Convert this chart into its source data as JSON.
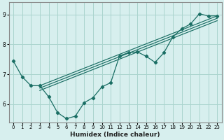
{
  "xlabel": "Humidex (Indice chaleur)",
  "xlim": [
    -0.5,
    23.5
  ],
  "ylim": [
    5.4,
    9.4
  ],
  "yticks": [
    6,
    7,
    8,
    9
  ],
  "xticks": [
    0,
    1,
    2,
    3,
    4,
    5,
    6,
    7,
    8,
    9,
    10,
    11,
    12,
    13,
    14,
    15,
    16,
    17,
    18,
    19,
    20,
    21,
    22,
    23
  ],
  "bg_color": "#d7efee",
  "line_color": "#1a6e64",
  "grid_color": "#aad4ce",
  "curve_x": [
    0,
    1,
    2,
    3,
    4,
    5,
    6,
    7,
    8,
    9,
    10,
    11,
    12,
    13,
    14,
    15,
    16,
    17,
    18,
    19,
    20,
    21,
    22,
    23
  ],
  "curve_y": [
    7.45,
    6.92,
    6.62,
    6.62,
    6.25,
    5.72,
    5.52,
    5.6,
    6.05,
    6.22,
    6.58,
    6.72,
    7.62,
    7.72,
    7.75,
    7.6,
    7.4,
    7.72,
    8.25,
    8.52,
    8.68,
    9.02,
    8.95,
    8.95
  ],
  "diag_x0": 3,
  "diag_x1": 23,
  "diag_y0": 6.62,
  "diag_y1": 8.95,
  "diag_offsets": [
    0.0,
    -0.08,
    -0.16
  ],
  "spine_color": "#888888",
  "xlabel_fontsize": 6.5,
  "tick_fontsize": 5.0
}
